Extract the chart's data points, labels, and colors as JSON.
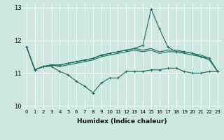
{
  "xlabel": "Humidex (Indice chaleur)",
  "xlim": [
    -0.5,
    23.5
  ],
  "ylim": [
    9.9,
    13.1
  ],
  "yticks": [
    10,
    11,
    12,
    13
  ],
  "xtick_labels": [
    "0",
    "1",
    "2",
    "3",
    "4",
    "5",
    "6",
    "7",
    "8",
    "9",
    "10",
    "11",
    "12",
    "13",
    "14",
    "15",
    "16",
    "17",
    "18",
    "19",
    "20",
    "21",
    "22",
    "23"
  ],
  "background_color": "#cce8e0",
  "grid_color": "#ffffff",
  "line_color": "#1a6b5a",
  "series_zigzag": [
    11.8,
    11.1,
    11.2,
    11.2,
    11.05,
    10.95,
    10.75,
    10.6,
    10.4,
    10.7,
    10.85,
    10.85,
    11.05,
    11.05,
    11.05,
    11.1,
    11.1,
    11.15,
    11.15,
    11.05,
    11.0,
    11.0,
    11.05,
    11.05
  ],
  "series_smooth1": [
    11.8,
    11.1,
    11.2,
    11.25,
    11.2,
    11.25,
    11.3,
    11.35,
    11.4,
    11.5,
    11.55,
    11.6,
    11.65,
    11.7,
    11.65,
    11.7,
    11.6,
    11.65,
    11.65,
    11.6,
    11.55,
    11.5,
    11.4,
    11.05
  ],
  "series_smooth2": [
    11.8,
    11.1,
    11.2,
    11.25,
    11.25,
    11.3,
    11.35,
    11.4,
    11.45,
    11.55,
    11.6,
    11.65,
    11.7,
    11.75,
    11.7,
    11.75,
    11.65,
    11.7,
    11.7,
    11.65,
    11.6,
    11.55,
    11.45,
    11.05
  ],
  "series_spike": [
    11.8,
    11.1,
    11.2,
    11.25,
    11.25,
    11.3,
    11.35,
    11.4,
    11.45,
    11.55,
    11.6,
    11.65,
    11.7,
    11.75,
    11.85,
    12.95,
    12.35,
    11.8,
    11.65,
    11.65,
    11.6,
    11.5,
    11.45,
    11.05
  ]
}
